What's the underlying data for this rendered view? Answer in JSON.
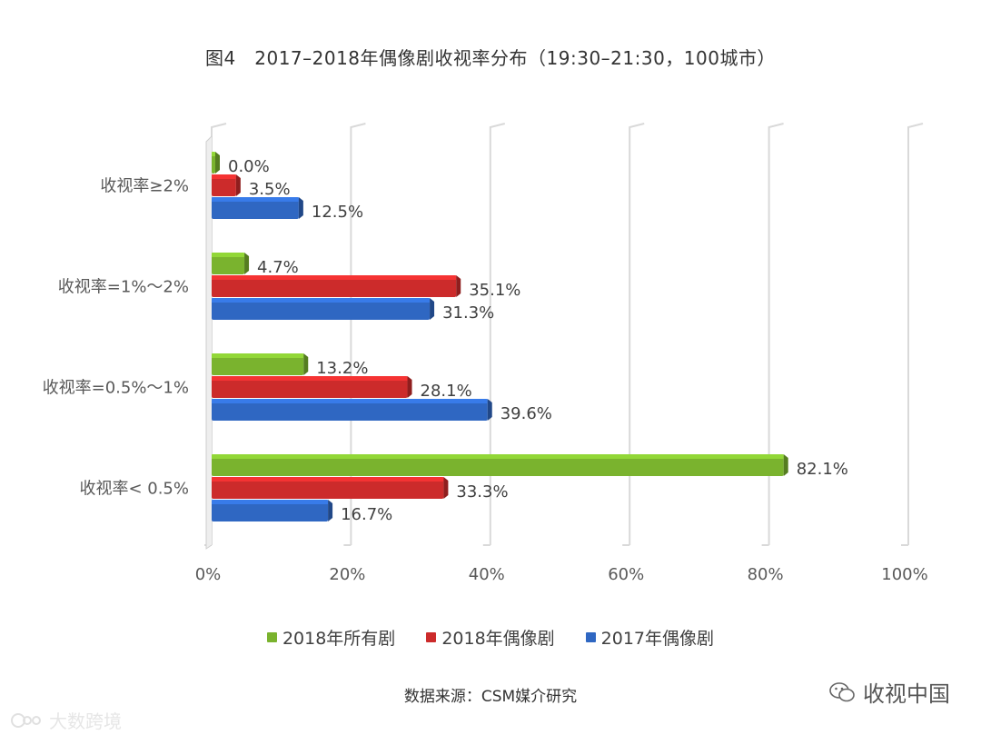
{
  "title": "图4　2017–2018年偶像剧收视率分布（19:30–21:30，100城市）",
  "chart_data": {
    "type": "bar",
    "orientation": "horizontal",
    "categories": [
      "收视率≥2%",
      "收视率=1%～2%",
      "收视率=0.5%～1%",
      "收视率< 0.5%"
    ],
    "series": [
      {
        "name": "2018年所有剧",
        "color": "#7ab32e",
        "values": [
          0.0,
          4.7,
          13.2,
          82.1
        ],
        "labels": [
          "0.0%",
          "4.7%",
          "13.2%",
          "82.1%"
        ]
      },
      {
        "name": "2018年偶像剧",
        "color": "#cc2b2b",
        "values": [
          3.5,
          35.1,
          28.1,
          33.3
        ],
        "labels": [
          "3.5%",
          "35.1%",
          "28.1%",
          "33.3%"
        ]
      },
      {
        "name": "2017年偶像剧",
        "color": "#2f67c2",
        "values": [
          12.5,
          31.3,
          39.6,
          16.7
        ],
        "labels": [
          "12.5%",
          "31.3%",
          "39.6%",
          "16.7%"
        ]
      }
    ],
    "xlim": [
      0,
      100
    ],
    "xticks": [
      0,
      20,
      40,
      60,
      80,
      100
    ],
    "xtick_labels": [
      "0%",
      "20%",
      "40%",
      "60%",
      "80%",
      "100%"
    ],
    "grid": true,
    "legend_position": "bottom"
  },
  "source": "数据来源：CSM媒介研究",
  "watermark_right": "收视中国",
  "watermark_left": "大数跨境"
}
